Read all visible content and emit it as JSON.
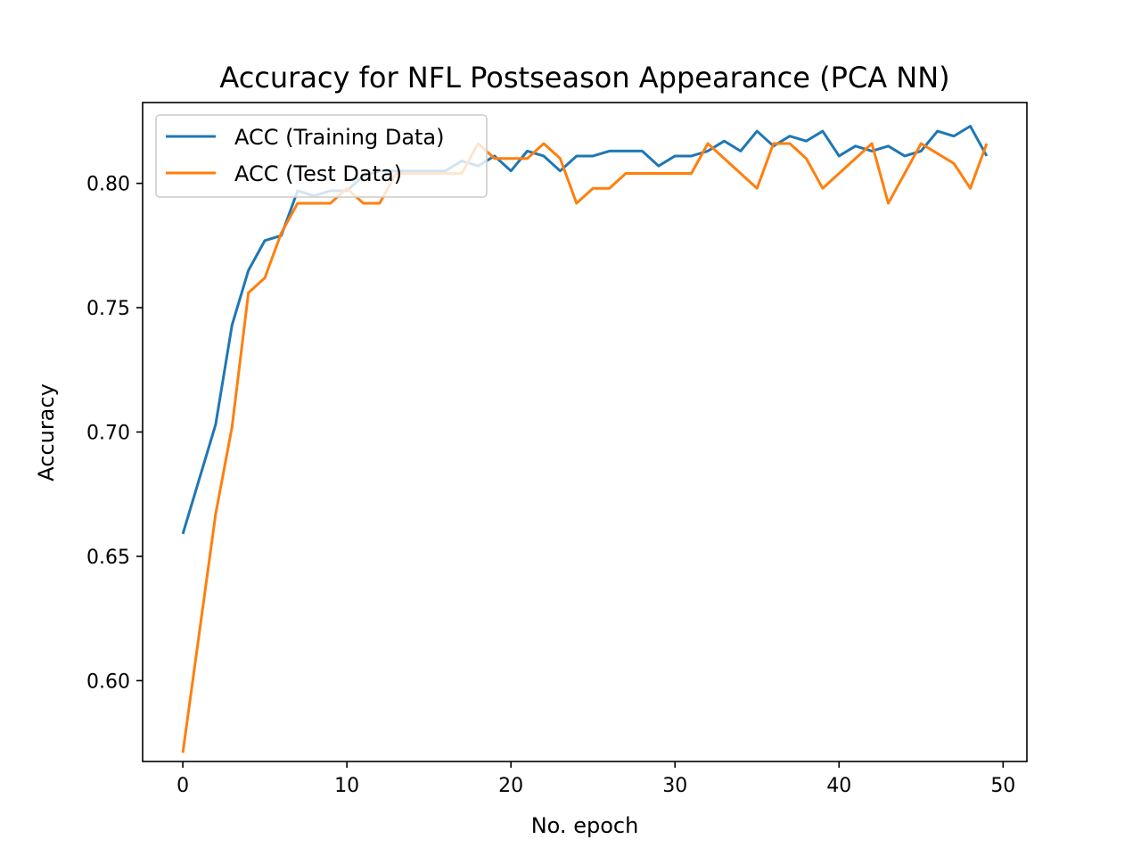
{
  "chart_data": {
    "type": "line",
    "title": "Accuracy for NFL Postseason Appearance (PCA NN)",
    "xlabel": "No. epoch",
    "ylabel": "Accuracy",
    "xlim": [
      -2.45,
      51.45
    ],
    "ylim": [
      0.5675,
      0.8325
    ],
    "xticks": [
      0,
      10,
      20,
      30,
      40,
      50
    ],
    "xtick_labels": [
      "0",
      "10",
      "20",
      "30",
      "40",
      "50"
    ],
    "yticks": [
      0.6,
      0.65,
      0.7,
      0.75,
      0.8
    ],
    "ytick_labels": [
      "0.60",
      "0.65",
      "0.70",
      "0.75",
      "0.80"
    ],
    "grid": false,
    "legend_position": "top-left",
    "x": [
      0,
      1,
      2,
      3,
      4,
      5,
      6,
      7,
      8,
      9,
      10,
      11,
      12,
      13,
      14,
      15,
      16,
      17,
      18,
      19,
      20,
      21,
      22,
      23,
      24,
      25,
      26,
      27,
      28,
      29,
      30,
      31,
      32,
      33,
      34,
      35,
      36,
      37,
      38,
      39,
      40,
      41,
      42,
      43,
      44,
      45,
      46,
      47,
      48,
      49
    ],
    "series": [
      {
        "name": "ACC (Training Data)",
        "color": "#1f77b4",
        "values": [
          0.659,
          0.681,
          0.703,
          0.743,
          0.765,
          0.777,
          0.779,
          0.797,
          0.795,
          0.797,
          0.797,
          0.803,
          0.805,
          0.805,
          0.805,
          0.805,
          0.805,
          0.809,
          0.807,
          0.811,
          0.805,
          0.813,
          0.811,
          0.805,
          0.811,
          0.811,
          0.813,
          0.813,
          0.813,
          0.807,
          0.811,
          0.811,
          0.813,
          0.817,
          0.813,
          0.821,
          0.815,
          0.819,
          0.817,
          0.821,
          0.811,
          0.815,
          0.813,
          0.815,
          0.811,
          0.813,
          0.821,
          0.819,
          0.823,
          0.811
        ]
      },
      {
        "name": "ACC (Test Data)",
        "color": "#ff7f0e",
        "values": [
          0.571,
          0.619,
          0.667,
          0.702,
          0.756,
          0.762,
          0.78,
          0.792,
          0.792,
          0.792,
          0.798,
          0.792,
          0.792,
          0.804,
          0.804,
          0.804,
          0.804,
          0.804,
          0.816,
          0.81,
          0.81,
          0.81,
          0.816,
          0.81,
          0.792,
          0.798,
          0.798,
          0.804,
          0.804,
          0.804,
          0.804,
          0.804,
          0.816,
          0.81,
          0.804,
          0.798,
          0.816,
          0.816,
          0.81,
          0.798,
          0.804,
          0.81,
          0.816,
          0.792,
          0.804,
          0.816,
          0.812,
          0.808,
          0.798,
          0.816
        ]
      }
    ]
  }
}
